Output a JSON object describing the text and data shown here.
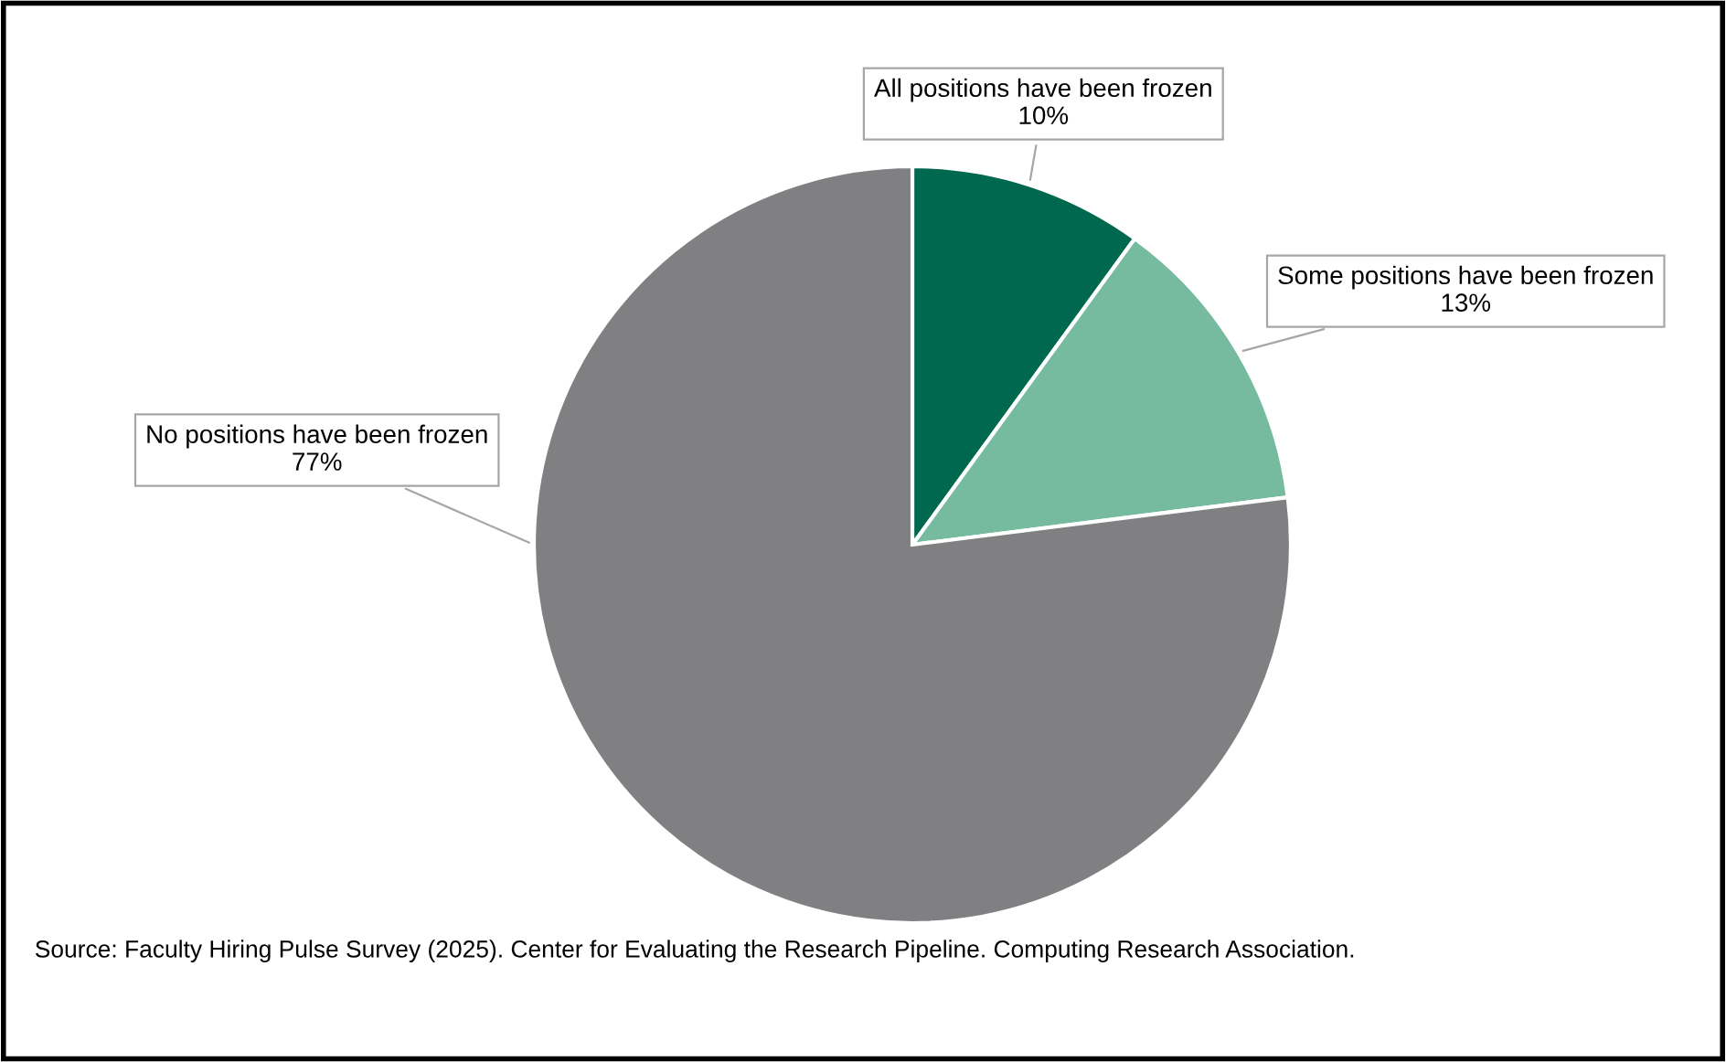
{
  "chart_data": {
    "type": "pie",
    "categories": [
      "All positions have been frozen",
      "Some positions have been frozen",
      "No positions have been frozen"
    ],
    "values": [
      10,
      13,
      77
    ],
    "value_labels": [
      "10%",
      "13%",
      "77%"
    ],
    "colors": [
      "#00684f",
      "#76bb9f",
      "#808083"
    ],
    "annotations": [
      "Source: Faculty Hiring Pulse Survey (2025). Center for Evaluating the Research Pipeline. Computing Research Association."
    ]
  }
}
